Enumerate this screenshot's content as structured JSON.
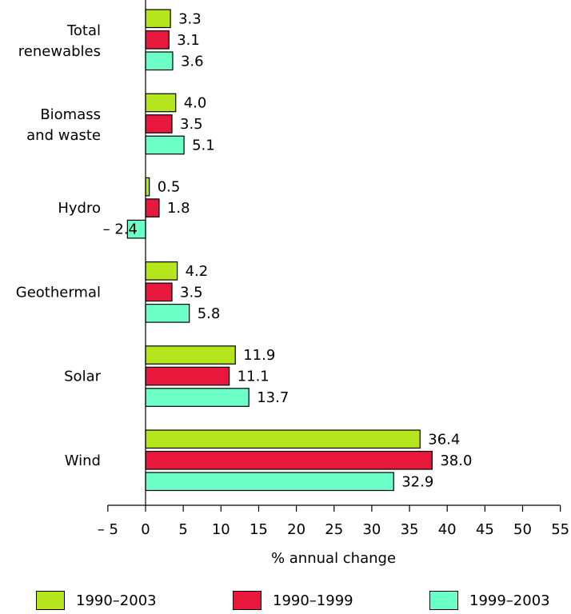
{
  "chart_data": {
    "type": "bar",
    "orientation": "horizontal",
    "categories": [
      "Total renewables",
      "Biomass and waste",
      "Hydro",
      "Geothermal",
      "Solar",
      "Wind"
    ],
    "category_lines": [
      [
        "Total",
        "renewables"
      ],
      [
        "Biomass",
        "and waste"
      ],
      [
        "Hydro"
      ],
      [
        "Geothermal"
      ],
      [
        "Solar"
      ],
      [
        "Wind"
      ]
    ],
    "series": [
      {
        "name": "1990–2003",
        "color": "#b5e61d",
        "values": [
          3.3,
          4.0,
          0.5,
          4.2,
          11.9,
          36.4
        ]
      },
      {
        "name": "1990–1999",
        "color": "#e8173c",
        "values": [
          3.1,
          3.5,
          1.8,
          3.5,
          11.1,
          38.0
        ]
      },
      {
        "name": "1999–2003",
        "color": "#6dffc8",
        "values": [
          3.6,
          5.1,
          -2.4,
          5.8,
          13.7,
          32.9
        ]
      }
    ],
    "value_labels": [
      [
        "3.3",
        "4.0",
        "0.5",
        "4.2",
        "11.9",
        "36.4"
      ],
      [
        "3.1",
        "3.5",
        "1.8",
        "3.5",
        "11.1",
        "38.0"
      ],
      [
        "3.6",
        "5.1",
        "– 2.4",
        "5.8",
        "13.7",
        "32.9"
      ]
    ],
    "xlabel": "% annual change",
    "xlim": [
      -5,
      55
    ],
    "xticks": [
      -5,
      0,
      5,
      10,
      15,
      20,
      25,
      30,
      35,
      40,
      45,
      50,
      55
    ],
    "xtick_labels": [
      "– 5",
      "0",
      "5",
      "10",
      "15",
      "20",
      "25",
      "30",
      "35",
      "40",
      "45",
      "50",
      "55"
    ],
    "grid": false,
    "legend_position": "bottom"
  }
}
